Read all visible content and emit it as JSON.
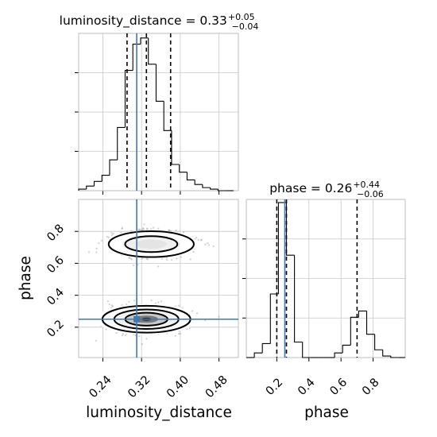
{
  "chart_data": {
    "type": "corner",
    "parameters": [
      "luminosity_distance",
      "phase"
    ],
    "truths": {
      "luminosity_distance": 0.31,
      "phase": 0.25
    },
    "panels": [
      {
        "name": "luminosity_distance-marginal",
        "type": "histogram",
        "parameter": "luminosity_distance",
        "title_prefix": "luminosity_distance = 0.33",
        "title_sup": "+0.05",
        "title_sub": "−0.04",
        "xlim": [
          0.19,
          0.52
        ],
        "ylim": [
          0,
          1
        ],
        "bin_edges": [
          0.19,
          0.206,
          0.222,
          0.238,
          0.254,
          0.27,
          0.286,
          0.302,
          0.318,
          0.334,
          0.35,
          0.366,
          0.382,
          0.398,
          0.414,
          0.43,
          0.446,
          0.462,
          0.478,
          0.494,
          0.51
        ],
        "counts": [
          0.01,
          0.03,
          0.06,
          0.1,
          0.2,
          0.41,
          0.78,
          0.95,
          0.99,
          0.82,
          0.58,
          0.39,
          0.17,
          0.12,
          0.07,
          0.04,
          0.02,
          0.01,
          0.0,
          0.0
        ],
        "quantiles": [
          0.29,
          0.33,
          0.38
        ],
        "xticks": [
          0.24,
          0.32,
          0.4,
          0.48
        ]
      },
      {
        "name": "phase-vs-luminosity_distance",
        "type": "density2d",
        "xlim": [
          0.19,
          0.52
        ],
        "ylim": [
          0.01,
          1.0
        ],
        "xlabel": "luminosity_distance",
        "ylabel": "phase",
        "xticks": [
          0.24,
          0.32,
          0.4,
          0.48
        ],
        "xtick_labels": [
          "0.24",
          "0.32",
          "0.40",
          "0.48"
        ],
        "yticks": [
          0.2,
          0.4,
          0.6,
          0.8
        ],
        "ytick_labels": [
          "0.2",
          "0.4",
          "0.6",
          "0.8"
        ],
        "modes": [
          {
            "center": [
              0.33,
              0.25
            ],
            "spread": [
              0.035,
              0.035
            ],
            "weight": 0.68
          },
          {
            "center": [
              0.34,
              0.72
            ],
            "spread": [
              0.04,
              0.04
            ],
            "weight": 0.32
          }
        ]
      },
      {
        "name": "phase-marginal",
        "type": "histogram",
        "parameter": "phase",
        "title_prefix": "phase = 0.26",
        "title_sup": "+0.44",
        "title_sub": "−0.06",
        "xlim": [
          0.01,
          1.0
        ],
        "ylim": [
          0,
          1
        ],
        "bin_edges": [
          0.01,
          0.06,
          0.11,
          0.16,
          0.21,
          0.26,
          0.31,
          0.36,
          0.41,
          0.46,
          0.51,
          0.56,
          0.61,
          0.66,
          0.71,
          0.76,
          0.81,
          0.86,
          0.91,
          0.96,
          1.0
        ],
        "counts": [
          0.0,
          0.03,
          0.09,
          0.41,
          1.0,
          0.66,
          0.1,
          0.0,
          0.0,
          0.0,
          0.0,
          0.03,
          0.08,
          0.26,
          0.3,
          0.15,
          0.05,
          0.01,
          0.0,
          0.0
        ],
        "quantiles": [
          0.2,
          0.26,
          0.7
        ],
        "xlabel": "phase",
        "xticks": [
          0.2,
          0.4,
          0.6,
          0.8
        ],
        "xtick_labels": [
          "0.2",
          "0.4",
          "0.6",
          "0.8"
        ]
      }
    ]
  }
}
